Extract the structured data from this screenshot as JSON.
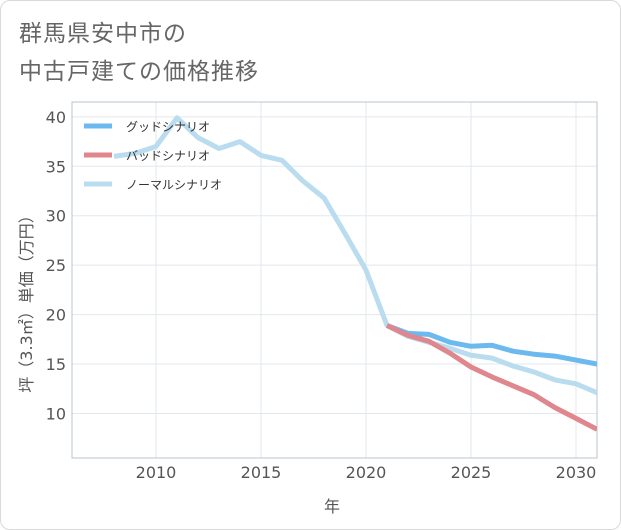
{
  "title_lines": [
    "群馬県安中市の",
    "中古戸建ての価格推移"
  ],
  "chart_data": {
    "type": "line",
    "title": "群馬県安中市の中古戸建ての価格推移",
    "xlabel": "年",
    "ylabel": "坪（3.3㎡）単価（万円）",
    "xlim": [
      2006,
      2031
    ],
    "ylim": [
      5.5,
      41.5
    ],
    "x_ticks": [
      2010,
      2015,
      2020,
      2025,
      2030
    ],
    "y_ticks": [
      10,
      15,
      20,
      25,
      30,
      35,
      40
    ],
    "grid": true,
    "legend_position": "top-left",
    "series": [
      {
        "name": "グッドシナリオ",
        "color": "#6cb9f0",
        "x": [
          2021,
          2022,
          2023,
          2024,
          2025,
          2026,
          2027,
          2028,
          2029,
          2030,
          2031
        ],
        "values": [
          18.9,
          18.1,
          18.0,
          17.2,
          16.8,
          16.9,
          16.3,
          16.0,
          15.8,
          15.4,
          15.0
        ]
      },
      {
        "name": "バッドシナリオ",
        "color": "#e0868d",
        "x": [
          2021,
          2022,
          2023,
          2024,
          2025,
          2026,
          2027,
          2028,
          2029,
          2030,
          2031
        ],
        "values": [
          18.9,
          17.9,
          17.3,
          16.1,
          14.7,
          13.7,
          12.8,
          11.9,
          10.6,
          9.5,
          8.4
        ]
      },
      {
        "name": "ノーマルシナリオ",
        "color": "#b9dcef",
        "x": [
          2008,
          2009,
          2010,
          2011,
          2012,
          2013,
          2014,
          2015,
          2016,
          2017,
          2018,
          2019,
          2020,
          2021,
          2022,
          2023,
          2024,
          2025,
          2026,
          2027,
          2028,
          2029,
          2030,
          2031
        ],
        "values": [
          36.0,
          36.3,
          37.0,
          39.9,
          37.9,
          36.8,
          37.5,
          36.1,
          35.6,
          33.5,
          31.8,
          28.2,
          24.5,
          18.9,
          17.8,
          17.2,
          16.6,
          15.9,
          15.6,
          14.8,
          14.2,
          13.4,
          13.0,
          12.1
        ]
      }
    ]
  }
}
